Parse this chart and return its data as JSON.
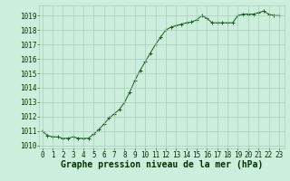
{
  "x": [
    0,
    0.5,
    1,
    1.5,
    2,
    2.5,
    3,
    3.5,
    4,
    4.5,
    5,
    5.5,
    6,
    6.5,
    7,
    7.5,
    8,
    8.5,
    9,
    9.5,
    10,
    10.5,
    11,
    11.5,
    12,
    12.5,
    13,
    13.5,
    14,
    14.5,
    15,
    15.5,
    16,
    16.5,
    17,
    17.5,
    18,
    18.5,
    19,
    19.5,
    20,
    20.5,
    21,
    21.5,
    22,
    22.5,
    23
  ],
  "y": [
    1011.0,
    1010.7,
    1010.6,
    1010.6,
    1010.5,
    1010.5,
    1010.6,
    1010.5,
    1010.5,
    1010.5,
    1010.8,
    1011.1,
    1011.5,
    1011.9,
    1012.2,
    1012.5,
    1013.0,
    1013.7,
    1014.5,
    1015.2,
    1015.8,
    1016.4,
    1017.0,
    1017.5,
    1018.0,
    1018.2,
    1018.3,
    1018.4,
    1018.5,
    1018.55,
    1018.7,
    1019.0,
    1018.8,
    1018.5,
    1018.5,
    1018.5,
    1018.5,
    1018.5,
    1019.0,
    1019.1,
    1019.1,
    1019.1,
    1019.2,
    1019.3,
    1019.1,
    1019.0,
    1019.0
  ],
  "line_color": "#1a5c1a",
  "marker_color": "#1a5c1a",
  "bg_color": "#cceedd",
  "grid_color": "#aaccbb",
  "xlabel": "Graphe pression niveau de la mer (hPa)",
  "xlabel_fontsize": 7,
  "xlabel_fontweight": "bold",
  "ylabel_ticks": [
    1010,
    1011,
    1012,
    1013,
    1014,
    1015,
    1016,
    1017,
    1018,
    1019
  ],
  "xticks": [
    0,
    1,
    2,
    3,
    4,
    5,
    6,
    7,
    8,
    9,
    10,
    11,
    12,
    13,
    14,
    15,
    16,
    17,
    18,
    19,
    20,
    21,
    22,
    23
  ],
  "ylim": [
    1009.8,
    1019.7
  ],
  "xlim": [
    -0.3,
    23.5
  ],
  "tick_fontsize": 5.5,
  "text_color": "#003300"
}
